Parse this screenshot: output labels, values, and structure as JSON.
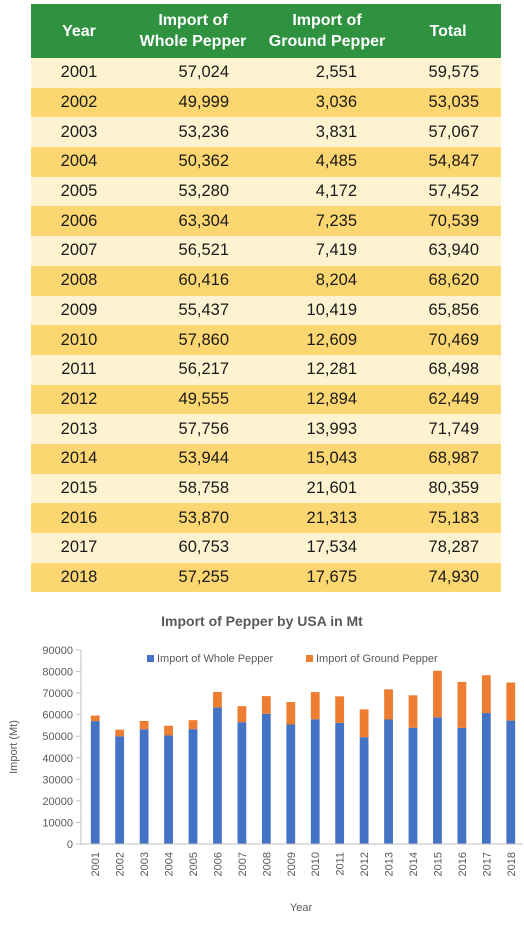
{
  "table": {
    "headers": [
      "Year",
      "Import of\nWhole Pepper",
      "Import of\nGround Pepper",
      "Total"
    ],
    "rows": [
      [
        "2001",
        "57,024",
        "2,551",
        "59,575"
      ],
      [
        "2002",
        "49,999",
        "3,036",
        "53,035"
      ],
      [
        "2003",
        "53,236",
        "3,831",
        "57,067"
      ],
      [
        "2004",
        "50,362",
        "4,485",
        "54,847"
      ],
      [
        "2005",
        "53,280",
        "4,172",
        "57,452"
      ],
      [
        "2006",
        "63,304",
        "7,235",
        "70,539"
      ],
      [
        "2007",
        "56,521",
        "7,419",
        "63,940"
      ],
      [
        "2008",
        "60,416",
        "8,204",
        "68,620"
      ],
      [
        "2009",
        "55,437",
        "10,419",
        "65,856"
      ],
      [
        "2010",
        "57,860",
        "12,609",
        "70,469"
      ],
      [
        "2011",
        "56,217",
        "12,281",
        "68,498"
      ],
      [
        "2012",
        "49,555",
        "12,894",
        "62,449"
      ],
      [
        "2013",
        "57,756",
        "13,993",
        "71,749"
      ],
      [
        "2014",
        "53,944",
        "15,043",
        "68,987"
      ],
      [
        "2015",
        "58,758",
        "21,601",
        "80,359"
      ],
      [
        "2016",
        "53,870",
        "21,313",
        "75,183"
      ],
      [
        "2017",
        "60,753",
        "17,534",
        "78,287"
      ],
      [
        "2018",
        "57,255",
        "17,675",
        "74,930"
      ]
    ],
    "colors": {
      "header_bg": "#2f9240",
      "row_light": "#fef3d0",
      "row_dark": "#fcd670"
    }
  },
  "chart_data": {
    "type": "bar",
    "stacked": true,
    "title": "Import of Pepper by USA in Mt",
    "xlabel": "Year",
    "ylabel": "Import (Mt)",
    "ylim": [
      0,
      90000
    ],
    "yticks": [
      0,
      10000,
      20000,
      30000,
      40000,
      50000,
      60000,
      70000,
      80000,
      90000
    ],
    "legend_position": "top",
    "categories": [
      "2001",
      "2002",
      "2003",
      "2004",
      "2005",
      "2006",
      "2007",
      "2008",
      "2009",
      "2010",
      "2011",
      "2012",
      "2013",
      "2014",
      "2015",
      "2016",
      "2017",
      "2018"
    ],
    "series": [
      {
        "name": "Import of Whole Pepper",
        "color": "#4472c4",
        "values": [
          57024,
          49999,
          53236,
          50362,
          53280,
          63304,
          56521,
          60416,
          55437,
          57860,
          56217,
          49555,
          57756,
          53944,
          58758,
          53870,
          60753,
          57255
        ]
      },
      {
        "name": "Import of Ground Pepper",
        "color": "#ed7d31",
        "values": [
          2551,
          3036,
          3831,
          4485,
          4172,
          7235,
          7419,
          8204,
          10419,
          12609,
          12281,
          12894,
          13993,
          15043,
          21601,
          21313,
          17534,
          17675
        ]
      }
    ]
  }
}
